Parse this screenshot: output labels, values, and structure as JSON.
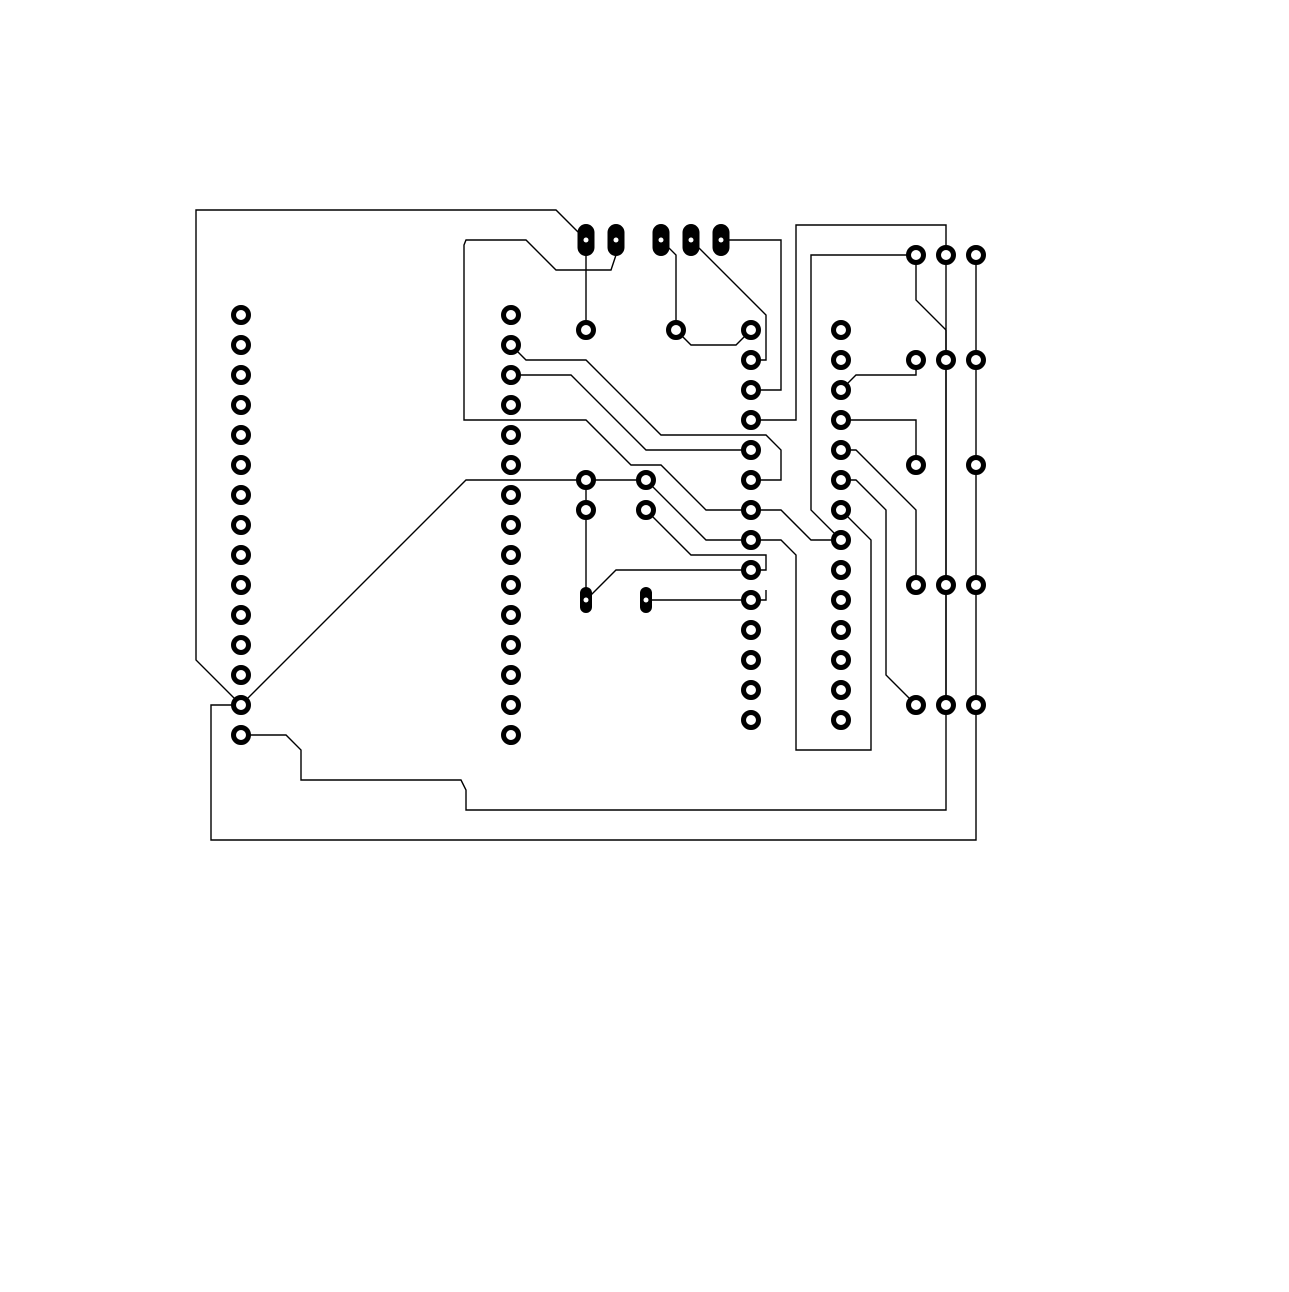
{
  "diagram": {
    "kind": "pcb-layout",
    "colors": {
      "background": "#ffffff",
      "copper": "#000000",
      "hole": "#ffffff"
    },
    "components": [
      "left-header-15-pin",
      "center-header-15-pin",
      "ic-socket-14x2",
      "power-connector-3-pin",
      "jumper-2-pin",
      "pushbutton-grid-3x5",
      "crystal-2-pin",
      "capacitor-pair"
    ]
  }
}
